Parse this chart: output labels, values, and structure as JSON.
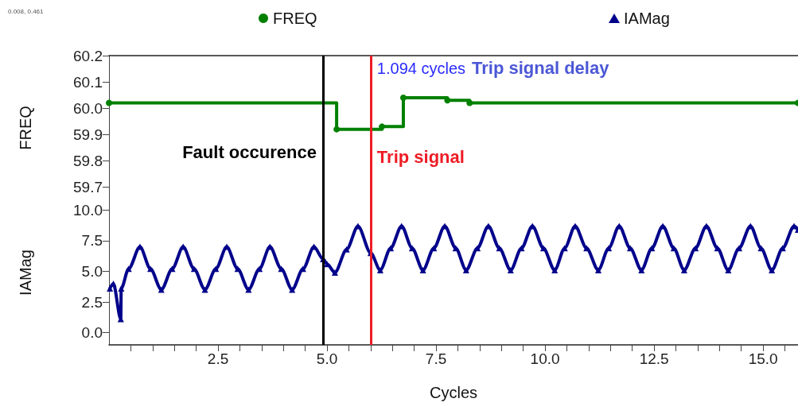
{
  "chart_data": [
    {
      "type": "step",
      "ylabel": "FREQ",
      "xlim": [
        0,
        15.8
      ],
      "ylim": [
        59.65,
        60.2
      ],
      "yticks": [
        {
          "value": 59.7,
          "label": "59.7"
        },
        {
          "value": 59.8,
          "label": "59.8"
        },
        {
          "value": 59.9,
          "label": "59.9"
        },
        {
          "value": 60,
          "label": "60.0"
        },
        {
          "value": 60.1,
          "label": "60.1"
        },
        {
          "value": 60.2,
          "label": "60.2"
        }
      ],
      "tick_labels": "y",
      "legend": "top",
      "marker": "circle",
      "series": [
        {
          "name": "FREQ",
          "color": "#008000",
          "x": [
            0,
            5.22,
            6.26,
            6.75,
            7.76,
            8.27,
            15.8
          ],
          "values": [
            60.02,
            59.92,
            59.93,
            60.04,
            60.03,
            60.02,
            60.02
          ]
        }
      ],
      "ref_lines": [
        {
          "axis": "x",
          "value": 4.906,
          "label": "Fault occurence",
          "color": "#000000"
        },
        {
          "axis": "x",
          "value": 6.0,
          "label": "Trip signal",
          "color": "#ee1c25"
        }
      ],
      "annotations": [
        "0.008, 0.461",
        "1.094 cycles",
        "Trip signal delay"
      ]
    },
    {
      "type": "line",
      "ylabel": "IAMag",
      "xlabel": "Cycles",
      "xlim": [
        0,
        15.8
      ],
      "xticks": [
        {
          "value": 0.5,
          "label": null
        },
        {
          "value": 1,
          "label": null
        },
        {
          "value": 1.5,
          "label": null
        },
        {
          "value": 2,
          "label": null
        },
        2.5,
        {
          "value": 3,
          "label": null
        },
        {
          "value": 3.5,
          "label": null
        },
        {
          "value": 4,
          "label": null
        },
        {
          "value": 4.5,
          "label": null
        },
        {
          "value": 5,
          "label": "5.0"
        },
        {
          "value": 5.5,
          "label": null
        },
        {
          "value": 6,
          "label": null
        },
        {
          "value": 6.5,
          "label": null
        },
        {
          "value": 7,
          "label": null
        },
        7.5,
        {
          "value": 8,
          "label": null
        },
        {
          "value": 8.5,
          "label": null
        },
        {
          "value": 9,
          "label": null
        },
        {
          "value": 9.5,
          "label": null
        },
        {
          "value": 10,
          "label": "10.0"
        },
        {
          "value": 10.5,
          "label": null
        },
        {
          "value": 11,
          "label": null
        },
        {
          "value": 11.5,
          "label": null
        },
        {
          "value": 12,
          "label": null
        },
        12.5,
        {
          "value": 13,
          "label": null
        },
        {
          "value": 13.5,
          "label": null
        },
        {
          "value": 14,
          "label": null
        },
        {
          "value": 14.5,
          "label": null
        },
        {
          "value": 15,
          "label": "15.0"
        },
        {
          "value": 15.5,
          "label": null
        }
      ],
      "ylim": [
        -1,
        10.8
      ],
      "yticks": [
        {
          "value": 0,
          "label": "0.0"
        },
        2.5,
        {
          "value": 5,
          "label": "5.0"
        },
        7.5,
        {
          "value": 10,
          "label": "10.0"
        }
      ],
      "legend": "top",
      "marker": "triangle",
      "series": [
        {
          "name": "IAMag",
          "color": "#00008b",
          "x": [
            0.02,
            0.1,
            0.27,
            0.28,
            0.45,
            0.71,
            0.95,
            1.2,
            1.45,
            1.7,
            1.95,
            2.2,
            2.45,
            2.7,
            2.95,
            3.2,
            3.45,
            3.69,
            3.95,
            4.2,
            4.45,
            4.7,
            4.91,
            5.0,
            5.18,
            5.45,
            5.71,
            6.0,
            6.22,
            6.46,
            6.71,
            6.95,
            7.2,
            7.45,
            7.7,
            7.95,
            8.19,
            8.45,
            8.7,
            8.95,
            9.21,
            9.46,
            9.71,
            9.96,
            10.22,
            10.45,
            10.69,
            10.95,
            11.22,
            11.46,
            11.7,
            11.95,
            12.21,
            12.45,
            12.7,
            12.95,
            13.19,
            13.45,
            13.7,
            13.95,
            14.2,
            14.45,
            14.71,
            14.95,
            15.2,
            15.45,
            15.71,
            15.8
          ],
          "values": [
            3.6,
            4.0,
            1.1,
            3.6,
            5.2,
            7.0,
            5.2,
            3.5,
            5.2,
            7.0,
            5.2,
            3.5,
            5.2,
            7.0,
            5.2,
            3.5,
            5.2,
            7.0,
            5.2,
            3.5,
            5.2,
            7.0,
            6.0,
            5.6,
            4.9,
            6.8,
            8.7,
            6.5,
            5.1,
            6.9,
            8.7,
            6.9,
            5.1,
            6.9,
            8.7,
            6.9,
            5.1,
            6.9,
            8.7,
            6.9,
            5.1,
            6.9,
            8.7,
            6.9,
            5.1,
            6.9,
            8.7,
            6.9,
            5.1,
            6.9,
            8.7,
            6.9,
            5.1,
            6.9,
            8.7,
            6.9,
            5.1,
            6.9,
            8.7,
            6.9,
            5.1,
            6.9,
            8.7,
            6.9,
            5.1,
            6.9,
            8.7,
            8.4
          ]
        }
      ],
      "ref_lines": [
        {
          "axis": "x",
          "value": 4.906,
          "label": null,
          "color": "#000000"
        },
        {
          "axis": "x",
          "value": 6.0,
          "label": null,
          "color": "#ee1c25"
        }
      ]
    }
  ]
}
